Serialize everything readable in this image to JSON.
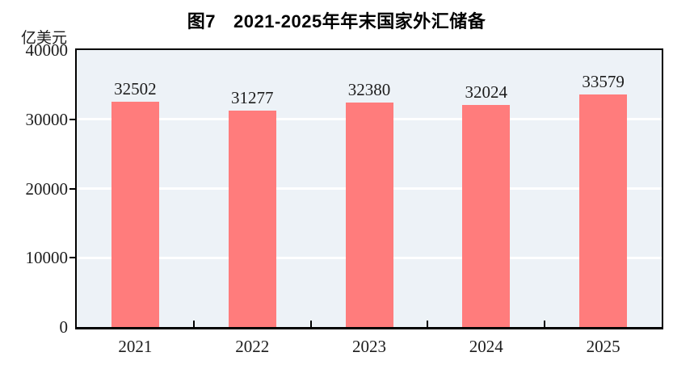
{
  "header": {
    "figure_label": "图7",
    "title": "2021-2025年年末国家外汇储备"
  },
  "axis": {
    "unit_label": "亿美元"
  },
  "chart_data": {
    "type": "bar",
    "title": "图7 2021-2025年年末国家外汇储备",
    "categories": [
      "2021",
      "2022",
      "2023",
      "2024",
      "2025"
    ],
    "values": [
      32502,
      31277,
      32380,
      32024,
      33579
    ],
    "data_labels": [
      "32502",
      "31277",
      "32380",
      "32024",
      "33579"
    ],
    "xlabel": "",
    "ylabel": "亿美元",
    "ylim": [
      0,
      40000
    ],
    "yticks": [
      0,
      10000,
      20000,
      30000,
      40000
    ],
    "gridlines_at": [
      10000,
      20000,
      30000
    ],
    "grid": true,
    "legend": "none",
    "bar_color": "#FF7C7C",
    "plot_background": "#EDF2F7",
    "gridline_color": "#FFFFFF",
    "axis_color": "#000000",
    "text_color": "#1c1c1c"
  }
}
